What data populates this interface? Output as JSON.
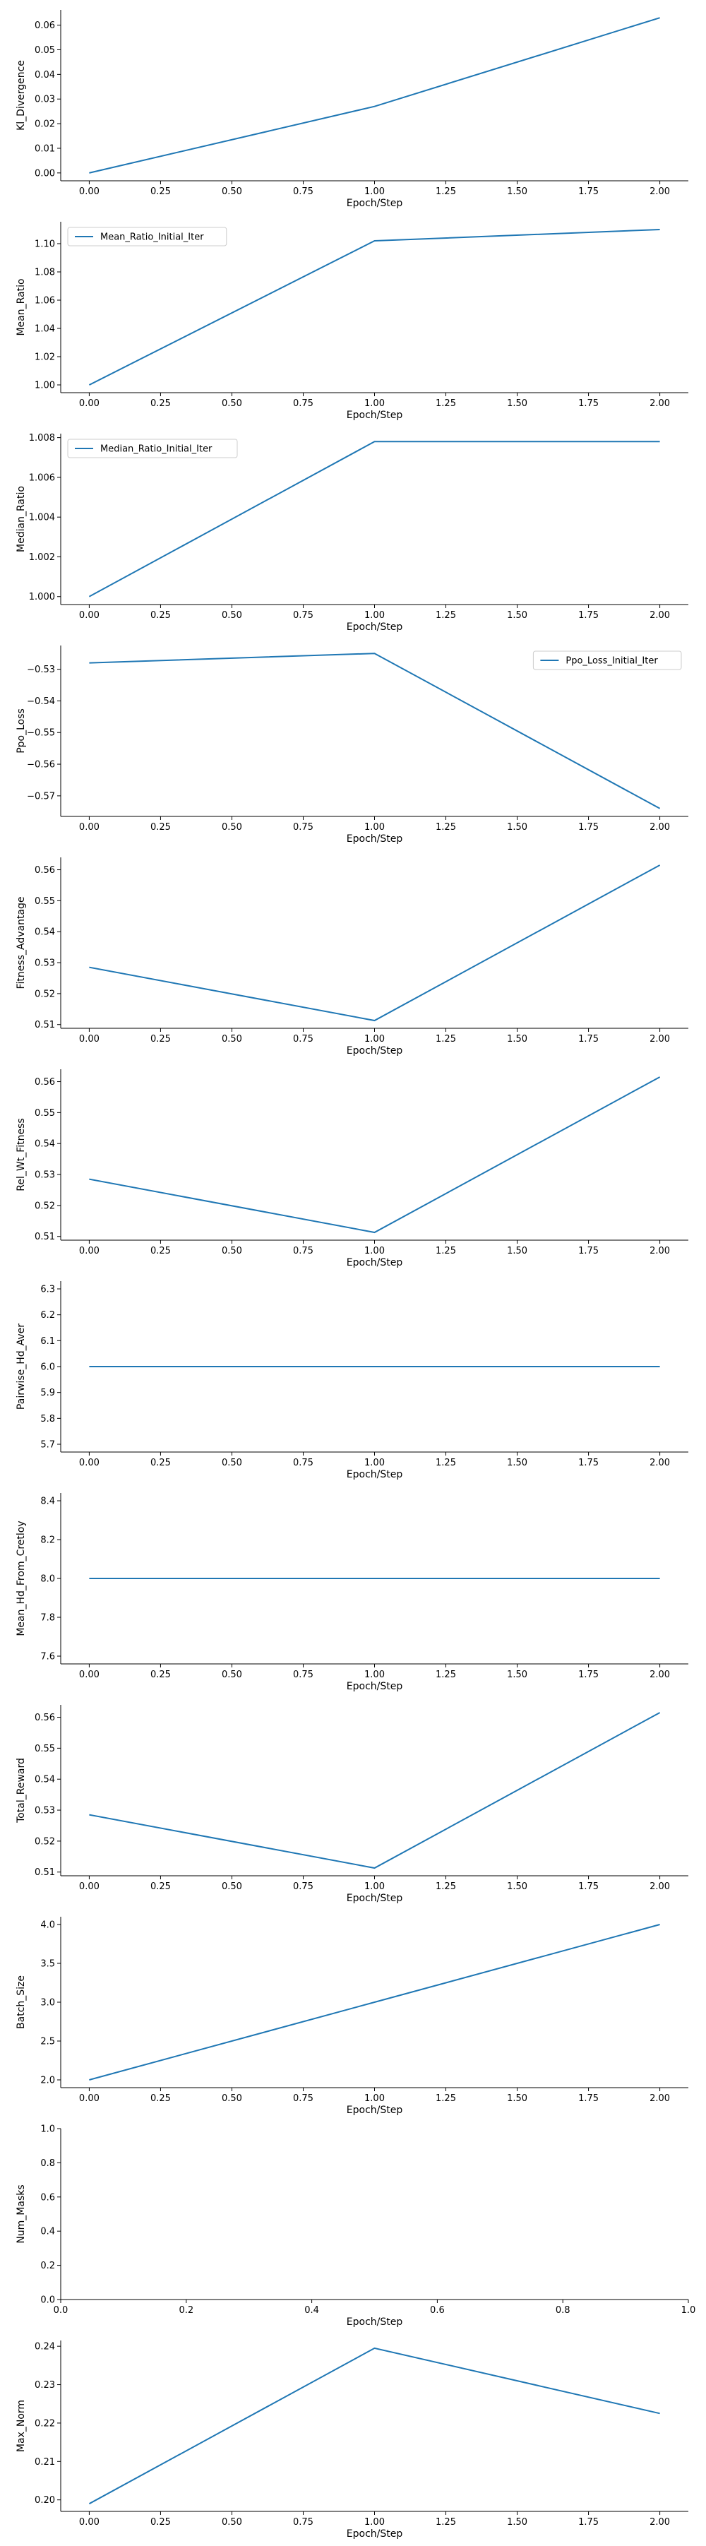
{
  "line_color": "#1f77b4",
  "axis_color": "#000000",
  "chart_data": [
    {
      "type": "line",
      "xlabel": "Epoch/Step",
      "ylabel": "Kl_Divergence",
      "x": [
        0,
        1,
        2
      ],
      "series": [
        {
          "values": [
            0.0,
            0.027,
            0.063
          ]
        }
      ],
      "xlim": [
        -0.1,
        2.1
      ],
      "ylim": [
        -0.0032,
        0.0662
      ],
      "xticks": [
        "0.00",
        "0.25",
        "0.50",
        "0.75",
        "1.00",
        "1.25",
        "1.50",
        "1.75",
        "2.00"
      ],
      "xtick_values": [
        0,
        0.25,
        0.5,
        0.75,
        1,
        1.25,
        1.5,
        1.75,
        2
      ],
      "yticks": [
        "0.00",
        "0.01",
        "0.02",
        "0.03",
        "0.04",
        "0.05",
        "0.06"
      ],
      "ytick_values": [
        0,
        0.01,
        0.02,
        0.03,
        0.04,
        0.05,
        0.06
      ],
      "legend": null
    },
    {
      "type": "line",
      "xlabel": "Epoch/Step",
      "ylabel": "Mean_Ratio",
      "x": [
        0,
        1,
        2
      ],
      "series": [
        {
          "name": "Mean_Ratio_Initial_Iter",
          "values": [
            1.0,
            1.102,
            1.11
          ]
        }
      ],
      "xlim": [
        -0.1,
        2.1
      ],
      "ylim": [
        0.9945,
        1.1155
      ],
      "xticks": [
        "0.00",
        "0.25",
        "0.50",
        "0.75",
        "1.00",
        "1.25",
        "1.50",
        "1.75",
        "2.00"
      ],
      "xtick_values": [
        0,
        0.25,
        0.5,
        0.75,
        1,
        1.25,
        1.5,
        1.75,
        2
      ],
      "yticks": [
        "1.00",
        "1.02",
        "1.04",
        "1.06",
        "1.08",
        "1.10"
      ],
      "ytick_values": [
        1.0,
        1.02,
        1.04,
        1.06,
        1.08,
        1.1
      ],
      "legend": "upper-left"
    },
    {
      "type": "line",
      "xlabel": "Epoch/Step",
      "ylabel": "Median_Ratio",
      "x": [
        0,
        1,
        2
      ],
      "series": [
        {
          "name": "Median_Ratio_Initial_Iter",
          "values": [
            1.0,
            1.0078,
            1.0078
          ]
        }
      ],
      "xlim": [
        -0.1,
        2.1
      ],
      "ylim": [
        0.9996,
        1.0082
      ],
      "xticks": [
        "0.00",
        "0.25",
        "0.50",
        "0.75",
        "1.00",
        "1.25",
        "1.50",
        "1.75",
        "2.00"
      ],
      "xtick_values": [
        0,
        0.25,
        0.5,
        0.75,
        1,
        1.25,
        1.5,
        1.75,
        2
      ],
      "yticks": [
        "1.000",
        "1.002",
        "1.004",
        "1.006",
        "1.008"
      ],
      "ytick_values": [
        1.0,
        1.002,
        1.004,
        1.006,
        1.008
      ],
      "legend": "upper-left"
    },
    {
      "type": "line",
      "xlabel": "Epoch/Step",
      "ylabel": "Ppo_Loss",
      "x": [
        0,
        1,
        2
      ],
      "series": [
        {
          "name": "Ppo_Loss_Initial_Iter",
          "values": [
            -0.528,
            -0.525,
            -0.574
          ]
        }
      ],
      "xlim": [
        -0.1,
        2.1
      ],
      "ylim": [
        -0.5765,
        -0.5225
      ],
      "xticks": [
        "0.00",
        "0.25",
        "0.50",
        "0.75",
        "1.00",
        "1.25",
        "1.50",
        "1.75",
        "2.00"
      ],
      "xtick_values": [
        0,
        0.25,
        0.5,
        0.75,
        1,
        1.25,
        1.5,
        1.75,
        2
      ],
      "yticks": [
        "−0.57",
        "−0.56",
        "−0.55",
        "−0.54",
        "−0.53"
      ],
      "ytick_values": [
        -0.57,
        -0.56,
        -0.55,
        -0.54,
        -0.53
      ],
      "legend": "upper-right"
    },
    {
      "type": "line",
      "xlabel": "Epoch/Step",
      "ylabel": "Fitness_Advantage",
      "x": [
        0,
        1,
        2
      ],
      "series": [
        {
          "values": [
            0.5285,
            0.5113,
            0.5615
          ]
        }
      ],
      "xlim": [
        -0.1,
        2.1
      ],
      "ylim": [
        0.5088,
        0.564
      ],
      "xticks": [
        "0.00",
        "0.25",
        "0.50",
        "0.75",
        "1.00",
        "1.25",
        "1.50",
        "1.75",
        "2.00"
      ],
      "xtick_values": [
        0,
        0.25,
        0.5,
        0.75,
        1,
        1.25,
        1.5,
        1.75,
        2
      ],
      "yticks": [
        "0.51",
        "0.52",
        "0.53",
        "0.54",
        "0.55",
        "0.56"
      ],
      "ytick_values": [
        0.51,
        0.52,
        0.53,
        0.54,
        0.55,
        0.56
      ],
      "legend": null
    },
    {
      "type": "line",
      "xlabel": "Epoch/Step",
      "ylabel": "Rel_Wt_Fitness",
      "x": [
        0,
        1,
        2
      ],
      "series": [
        {
          "values": [
            0.5285,
            0.5113,
            0.5615
          ]
        }
      ],
      "xlim": [
        -0.1,
        2.1
      ],
      "ylim": [
        0.5088,
        0.564
      ],
      "xticks": [
        "0.00",
        "0.25",
        "0.50",
        "0.75",
        "1.00",
        "1.25",
        "1.50",
        "1.75",
        "2.00"
      ],
      "xtick_values": [
        0,
        0.25,
        0.5,
        0.75,
        1,
        1.25,
        1.5,
        1.75,
        2
      ],
      "yticks": [
        "0.51",
        "0.52",
        "0.53",
        "0.54",
        "0.55",
        "0.56"
      ],
      "ytick_values": [
        0.51,
        0.52,
        0.53,
        0.54,
        0.55,
        0.56
      ],
      "legend": null
    },
    {
      "type": "line",
      "xlabel": "Epoch/Step",
      "ylabel": "Pairwise_Hd_Aver",
      "x": [
        0,
        1,
        2
      ],
      "series": [
        {
          "values": [
            6.0,
            6.0,
            6.0
          ]
        }
      ],
      "xlim": [
        -0.1,
        2.1
      ],
      "ylim": [
        5.67,
        6.33
      ],
      "xticks": [
        "0.00",
        "0.25",
        "0.50",
        "0.75",
        "1.00",
        "1.25",
        "1.50",
        "1.75",
        "2.00"
      ],
      "xtick_values": [
        0,
        0.25,
        0.5,
        0.75,
        1,
        1.25,
        1.5,
        1.75,
        2
      ],
      "yticks": [
        "5.7",
        "5.8",
        "5.9",
        "6.0",
        "6.1",
        "6.2",
        "6.3"
      ],
      "ytick_values": [
        5.7,
        5.8,
        5.9,
        6.0,
        6.1,
        6.2,
        6.3
      ],
      "legend": null
    },
    {
      "type": "line",
      "xlabel": "Epoch/Step",
      "ylabel": "Mean_Hd_From_Cretloy",
      "x": [
        0,
        1,
        2
      ],
      "series": [
        {
          "values": [
            8.0,
            8.0,
            8.0
          ]
        }
      ],
      "xlim": [
        -0.1,
        2.1
      ],
      "ylim": [
        7.56,
        8.44
      ],
      "xticks": [
        "0.00",
        "0.25",
        "0.50",
        "0.75",
        "1.00",
        "1.25",
        "1.50",
        "1.75",
        "2.00"
      ],
      "xtick_values": [
        0,
        0.25,
        0.5,
        0.75,
        1,
        1.25,
        1.5,
        1.75,
        2
      ],
      "yticks": [
        "7.6",
        "7.8",
        "8.0",
        "8.2",
        "8.4"
      ],
      "ytick_values": [
        7.6,
        7.8,
        8.0,
        8.2,
        8.4
      ],
      "legend": null
    },
    {
      "type": "line",
      "xlabel": "Epoch/Step",
      "ylabel": "Total_Reward",
      "x": [
        0,
        1,
        2
      ],
      "series": [
        {
          "values": [
            0.5285,
            0.5113,
            0.5615
          ]
        }
      ],
      "xlim": [
        -0.1,
        2.1
      ],
      "ylim": [
        0.5088,
        0.564
      ],
      "xticks": [
        "0.00",
        "0.25",
        "0.50",
        "0.75",
        "1.00",
        "1.25",
        "1.50",
        "1.75",
        "2.00"
      ],
      "xtick_values": [
        0,
        0.25,
        0.5,
        0.75,
        1,
        1.25,
        1.5,
        1.75,
        2
      ],
      "yticks": [
        "0.51",
        "0.52",
        "0.53",
        "0.54",
        "0.55",
        "0.56"
      ],
      "ytick_values": [
        0.51,
        0.52,
        0.53,
        0.54,
        0.55,
        0.56
      ],
      "legend": null
    },
    {
      "type": "line",
      "xlabel": "Epoch/Step",
      "ylabel": "Batch_Size",
      "x": [
        0,
        1,
        2
      ],
      "series": [
        {
          "values": [
            2.0,
            3.0,
            4.0
          ]
        }
      ],
      "xlim": [
        -0.1,
        2.1
      ],
      "ylim": [
        1.9,
        4.1
      ],
      "xticks": [
        "0.00",
        "0.25",
        "0.50",
        "0.75",
        "1.00",
        "1.25",
        "1.50",
        "1.75",
        "2.00"
      ],
      "xtick_values": [
        0,
        0.25,
        0.5,
        0.75,
        1,
        1.25,
        1.5,
        1.75,
        2
      ],
      "yticks": [
        "2.0",
        "2.5",
        "3.0",
        "3.5",
        "4.0"
      ],
      "ytick_values": [
        2.0,
        2.5,
        3.0,
        3.5,
        4.0
      ],
      "legend": null
    },
    {
      "type": "line",
      "xlabel": "Epoch/Step",
      "ylabel": "Num_Masks",
      "x": [],
      "series": [],
      "xlim": [
        0,
        1
      ],
      "ylim": [
        0,
        1
      ],
      "xticks": [
        "0.0",
        "0.2",
        "0.4",
        "0.6",
        "0.8",
        "1.0"
      ],
      "xtick_values": [
        0,
        0.2,
        0.4,
        0.6,
        0.8,
        1.0
      ],
      "yticks": [
        "0.0",
        "0.2",
        "0.4",
        "0.6",
        "0.8",
        "1.0"
      ],
      "ytick_values": [
        0,
        0.2,
        0.4,
        0.6,
        0.8,
        1.0
      ],
      "legend": null
    },
    {
      "type": "line",
      "xlabel": "Epoch/Step",
      "ylabel": "Max_Norm",
      "x": [
        0,
        1,
        2
      ],
      "series": [
        {
          "values": [
            0.199,
            0.2395,
            0.2225
          ]
        }
      ],
      "xlim": [
        -0.1,
        2.1
      ],
      "ylim": [
        0.197,
        0.2415
      ],
      "xticks": [
        "0.00",
        "0.25",
        "0.50",
        "0.75",
        "1.00",
        "1.25",
        "1.50",
        "1.75",
        "2.00"
      ],
      "xtick_values": [
        0,
        0.25,
        0.5,
        0.75,
        1,
        1.25,
        1.5,
        1.75,
        2
      ],
      "yticks": [
        "0.20",
        "0.21",
        "0.22",
        "0.23",
        "0.24"
      ],
      "ytick_values": [
        0.2,
        0.21,
        0.22,
        0.23,
        0.24
      ],
      "legend": null
    }
  ]
}
